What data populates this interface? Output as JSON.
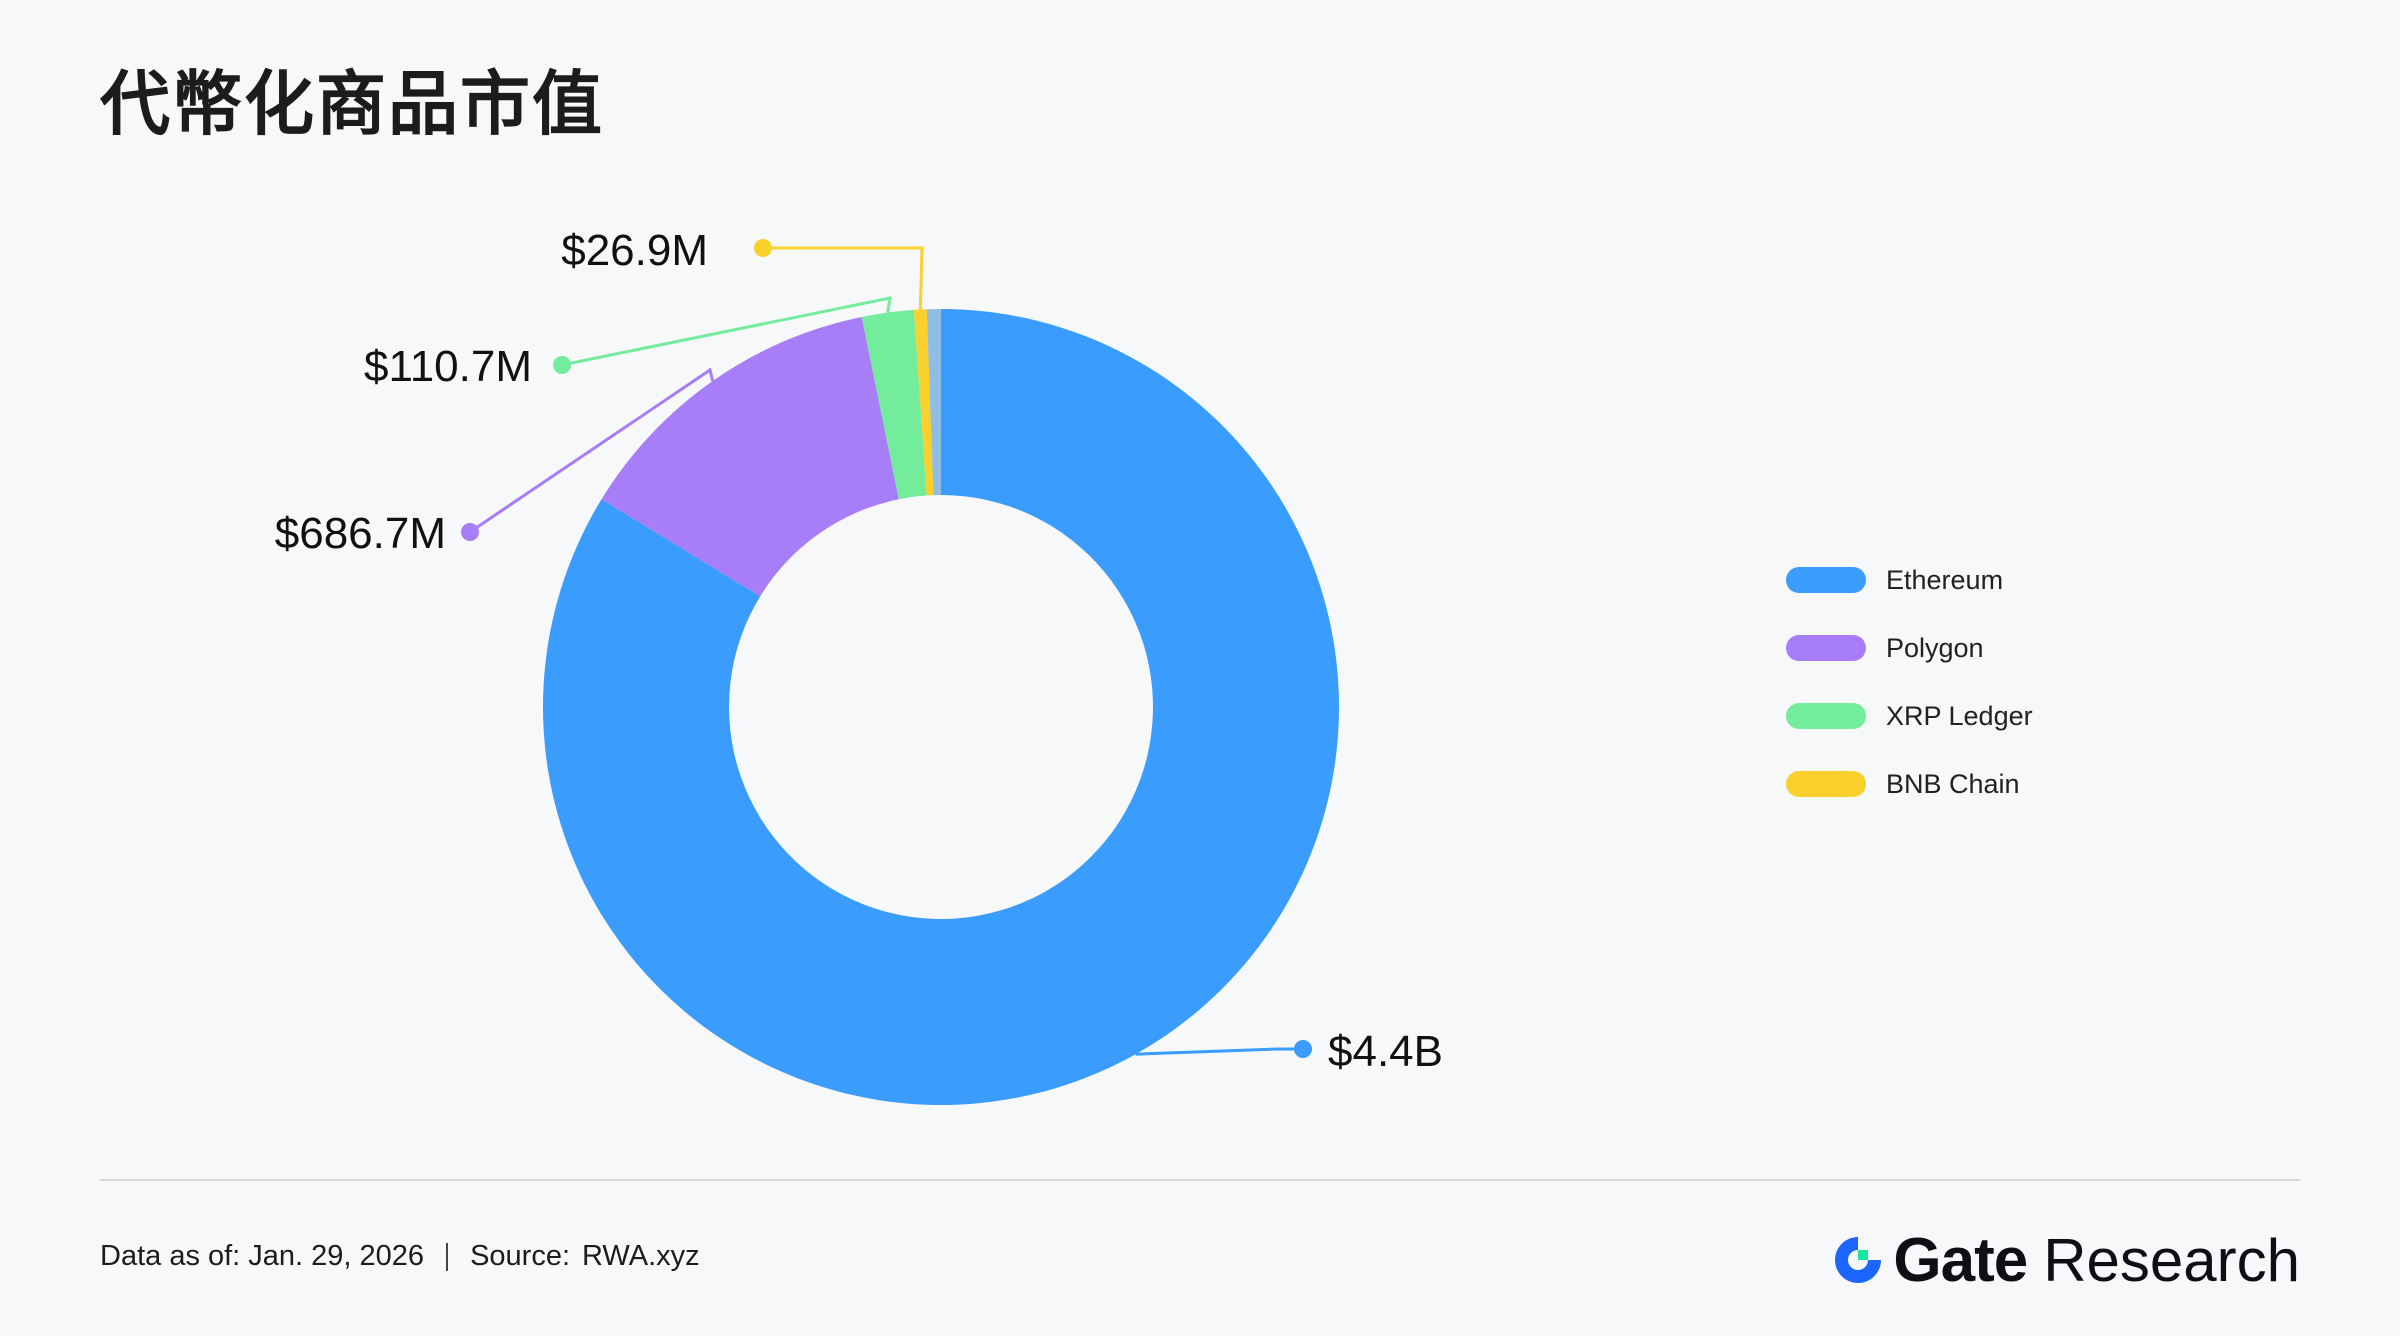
{
  "title": "代幣化商品市值",
  "chart_data": {
    "type": "pie",
    "variant": "donut",
    "categories": [
      "Ethereum",
      "Polygon",
      "XRP Ledger",
      "BNB Chain"
    ],
    "values": [
      4400,
      686.7,
      110.7,
      26.9
    ],
    "unit": "USD millions",
    "data_labels": [
      "$4.4B",
      "$686.7M",
      "$110.7M",
      "$26.9M"
    ],
    "colors": [
      "#3a9cfd",
      "#a87ef8",
      "#73ec9b",
      "#fad02c"
    ],
    "other_slice": {
      "value": 30,
      "color": "#8fbde6"
    },
    "legend_position": "right"
  },
  "legend": [
    {
      "label": "Ethereum",
      "color": "#3a9cfd"
    },
    {
      "label": "Polygon",
      "color": "#a87ef8"
    },
    {
      "label": "XRP Ledger",
      "color": "#73ec9b"
    },
    {
      "label": "BNB Chain",
      "color": "#fad02c"
    }
  ],
  "footer": {
    "date_text": "Data as of: Jan. 29, 2026",
    "source_label": "Source:",
    "source_value": "RWA.xyz"
  },
  "brand": {
    "name": "Gate",
    "sub": "Research",
    "colors": {
      "blue": "#1a66ff",
      "green": "#17e6a1"
    }
  }
}
